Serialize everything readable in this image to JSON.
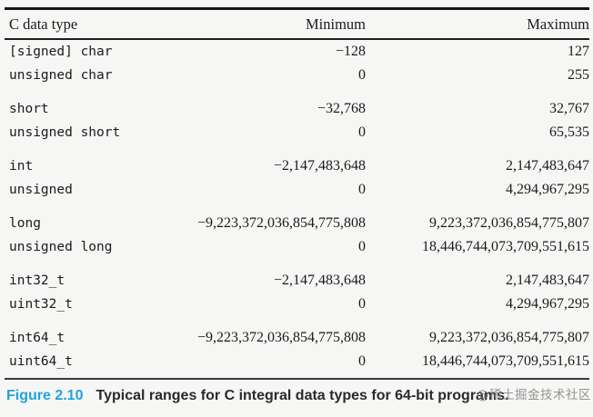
{
  "table": {
    "headers": {
      "type": "C data type",
      "min": "Minimum",
      "max": "Maximum"
    },
    "groups": [
      {
        "rows": [
          {
            "type": "[signed] char",
            "min": "−128",
            "max": "127"
          },
          {
            "type": "unsigned char",
            "min": "0",
            "max": "255"
          }
        ]
      },
      {
        "rows": [
          {
            "type": "short",
            "min": "−32,768",
            "max": "32,767"
          },
          {
            "type": "unsigned short",
            "min": "0",
            "max": "65,535"
          }
        ]
      },
      {
        "rows": [
          {
            "type": "int",
            "min": "−2,147,483,648",
            "max": "2,147,483,647"
          },
          {
            "type": "unsigned",
            "min": "0",
            "max": "4,294,967,295"
          }
        ]
      },
      {
        "rows": [
          {
            "type": "long",
            "min": "−9,223,372,036,854,775,808",
            "max": "9,223,372,036,854,775,807"
          },
          {
            "type": "unsigned long",
            "min": "0",
            "max": "18,446,744,073,709,551,615"
          }
        ]
      },
      {
        "rows": [
          {
            "type": "int32_t",
            "min": "−2,147,483,648",
            "max": "2,147,483,647"
          },
          {
            "type": "uint32_t",
            "min": "0",
            "max": "4,294,967,295"
          }
        ]
      },
      {
        "rows": [
          {
            "type": "int64_t",
            "min": "−9,223,372,036,854,775,808",
            "max": "9,223,372,036,854,775,807"
          },
          {
            "type": "uint64_t",
            "min": "0",
            "max": "18,446,744,073,709,551,615"
          }
        ]
      }
    ]
  },
  "caption": {
    "label": "Figure 2.10",
    "text": "Typical ranges for C integral data types for 64-bit programs."
  },
  "watermark": "@稀土掘金技术社区",
  "colors": {
    "caption_label_blue": "#1fa3de",
    "text": "#1b1b1b",
    "background": "#f6f6f5"
  }
}
